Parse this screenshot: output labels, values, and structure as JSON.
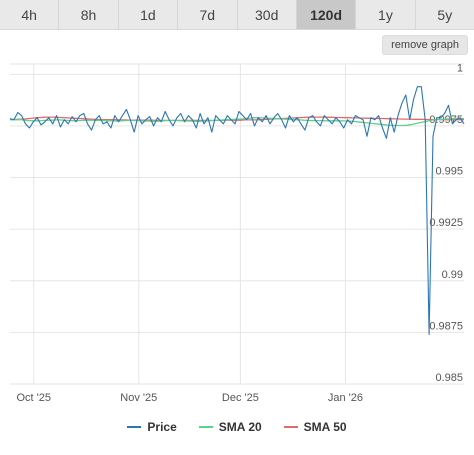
{
  "tabs": [
    {
      "label": "4h"
    },
    {
      "label": "8h"
    },
    {
      "label": "1d"
    },
    {
      "label": "7d"
    },
    {
      "label": "30d"
    },
    {
      "label": "120d",
      "active": true
    },
    {
      "label": "1y"
    },
    {
      "label": "5y"
    }
  ],
  "remove_label": "remove graph",
  "colors": {
    "price": "#2a77b5",
    "sma20": "#5fcf8a",
    "sma50": "#e06b6b",
    "grid": "#e6e6e6"
  },
  "chart_data": {
    "type": "line",
    "title": "",
    "xlabel": "",
    "ylabel": "",
    "ylim": [
      0.985,
      1.0005
    ],
    "yticks": [
      1,
      0.9975,
      0.995,
      0.9925,
      0.99,
      0.9875,
      0.985
    ],
    "ytick_labels": [
      "1",
      "0.9975",
      "0.995",
      "0.9925",
      "0.99",
      "0.9875",
      "0.985"
    ],
    "xlim": [
      "2025-09-24",
      "2026-02-05"
    ],
    "xticks": [
      "2025-10-01",
      "2025-11-01",
      "2025-12-01",
      "2026-01-01"
    ],
    "xtick_labels": [
      "Oct '25",
      "Nov '25",
      "Dec '25",
      "Jan '26"
    ],
    "grid": true,
    "legend_position": "bottom",
    "series": [
      {
        "name": "Price",
        "values": [
          0.99785,
          0.9978,
          0.99815,
          0.998,
          0.9976,
          0.9974,
          0.9977,
          0.9979,
          0.99755,
          0.9977,
          0.9979,
          0.9976,
          0.998,
          0.99745,
          0.9978,
          0.9976,
          0.99795,
          0.9977,
          0.998,
          0.9981,
          0.9976,
          0.9973,
          0.9978,
          0.998,
          0.9976,
          0.9977,
          0.9974,
          0.998,
          0.9977,
          0.998,
          0.9983,
          0.9978,
          0.9972,
          0.998,
          0.9976,
          0.9978,
          0.99795,
          0.9975,
          0.9979,
          0.9977,
          0.9982,
          0.9978,
          0.9975,
          0.9979,
          0.9981,
          0.9977,
          0.998,
          0.9978,
          0.9974,
          0.9981,
          0.9976,
          0.9979,
          0.9972,
          0.998,
          0.9978,
          0.9976,
          0.998,
          0.9978,
          0.9976,
          0.9982,
          0.998,
          0.9978,
          0.9981,
          0.9975,
          0.9979,
          0.9977,
          0.998,
          0.9976,
          0.9979,
          0.9981,
          0.9978,
          0.9974,
          0.998,
          0.9977,
          0.9979,
          0.9976,
          0.9973,
          0.9979,
          0.998,
          0.9977,
          0.9975,
          0.998,
          0.9978,
          0.9976,
          0.9979,
          0.9977,
          0.9974,
          0.9978,
          0.9976,
          0.998,
          0.9979,
          0.9978,
          0.997,
          0.9979,
          0.9978,
          0.998,
          0.9974,
          0.9969,
          0.9979,
          0.9972,
          0.998,
          0.9986,
          0.999,
          0.9978,
          0.9988,
          0.9994,
          0.9994,
          0.9978,
          0.9874,
          0.997,
          0.9979,
          0.9979,
          0.9981,
          0.9985,
          0.9976,
          0.9978,
          0.9979,
          0.9976
        ]
      },
      {
        "name": "SMA 20",
        "values": [
          0.9978,
          0.9978,
          0.9978,
          0.9978,
          0.99778,
          0.99776,
          0.99775,
          0.99775,
          0.99776,
          0.99777,
          0.99778,
          0.99778,
          0.99779,
          0.99779,
          0.99778,
          0.99777,
          0.99776,
          0.99775,
          0.99776,
          0.99777,
          0.99778,
          0.99778,
          0.99777,
          0.99777,
          0.99777,
          0.99776,
          0.99775,
          0.99775,
          0.99774,
          0.99775,
          0.99776,
          0.99777,
          0.99777,
          0.99776,
          0.99775,
          0.99775,
          0.99774,
          0.99773,
          0.99772,
          0.99773,
          0.99775,
          0.99776,
          0.99777,
          0.99777,
          0.99776,
          0.99775,
          0.99775,
          0.99774,
          0.99773,
          0.99772,
          0.99773,
          0.99774,
          0.99775,
          0.99776,
          0.99777,
          0.99778,
          0.99779,
          0.9978,
          0.99781,
          0.99782,
          0.99783,
          0.99784,
          0.99786,
          0.99788,
          0.9979,
          0.9979,
          0.99789,
          0.99788,
          0.99787,
          0.99786,
          0.99785,
          0.99784,
          0.99783,
          0.99782,
          0.99781,
          0.9978,
          0.99779,
          0.99778,
          0.99777,
          0.99776,
          0.99776,
          0.99776,
          0.99776,
          0.99775,
          0.99775,
          0.99775,
          0.99775,
          0.99775,
          0.99774,
          0.99773,
          0.99772,
          0.9977,
          0.99768,
          0.99766,
          0.99764,
          0.99762,
          0.9976,
          0.99758,
          0.99756,
          0.99754,
          0.99753,
          0.99752,
          0.99752,
          0.99752,
          0.99753,
          0.99756,
          0.9976,
          0.99764,
          0.99768,
          0.99772,
          0.99776,
          0.99779,
          0.99781,
          0.99782,
          0.99783,
          0.99784,
          0.99785,
          0.99786,
          0.99786,
          0.99786
        ]
      },
      {
        "name": "SMA 50",
        "values": [
          0.9978,
          0.99781,
          0.99782,
          0.99783,
          0.99784,
          0.99786,
          0.99788,
          0.9979,
          0.99791,
          0.99792,
          0.99793,
          0.99793,
          0.99792,
          0.99791,
          0.9979,
          0.99789,
          0.99788,
          0.99787,
          0.99786,
          0.99785,
          0.99784,
          0.99783,
          0.99782,
          0.99781,
          0.9978,
          0.9978,
          0.9978,
          0.9978,
          0.99779,
          0.99779,
          0.99779,
          0.99778,
          0.99778,
          0.99778,
          0.99778,
          0.99778,
          0.99778,
          0.99778,
          0.99777,
          0.99777,
          0.99777,
          0.99777,
          0.99777,
          0.99777,
          0.99777,
          0.99777,
          0.99777,
          0.99777,
          0.99777,
          0.99777,
          0.99777,
          0.99777,
          0.99777,
          0.99777,
          0.99777,
          0.99777,
          0.99778,
          0.99778,
          0.99778,
          0.99778,
          0.99778,
          0.99779,
          0.99779,
          0.99779,
          0.99779,
          0.9978,
          0.99781,
          0.99782,
          0.99783,
          0.99784,
          0.99785,
          0.99786,
          0.99787,
          0.99788,
          0.99789,
          0.9979,
          0.99791,
          0.99792,
          0.99793,
          0.99793,
          0.99793,
          0.99793,
          0.99793,
          0.99792,
          0.99792,
          0.99791,
          0.99791,
          0.9979,
          0.9979,
          0.99789,
          0.99789,
          0.99788,
          0.99788,
          0.99787,
          0.99787,
          0.99786,
          0.99786,
          0.99786,
          0.99785,
          0.99785,
          0.99784,
          0.99784,
          0.99783,
          0.99783,
          0.99783,
          0.99782,
          0.99782,
          0.99782,
          0.99781,
          0.99781,
          0.99781,
          0.99781,
          0.9978,
          0.9978,
          0.9978,
          0.9978,
          0.9978,
          0.9978,
          0.9978
        ]
      }
    ]
  }
}
